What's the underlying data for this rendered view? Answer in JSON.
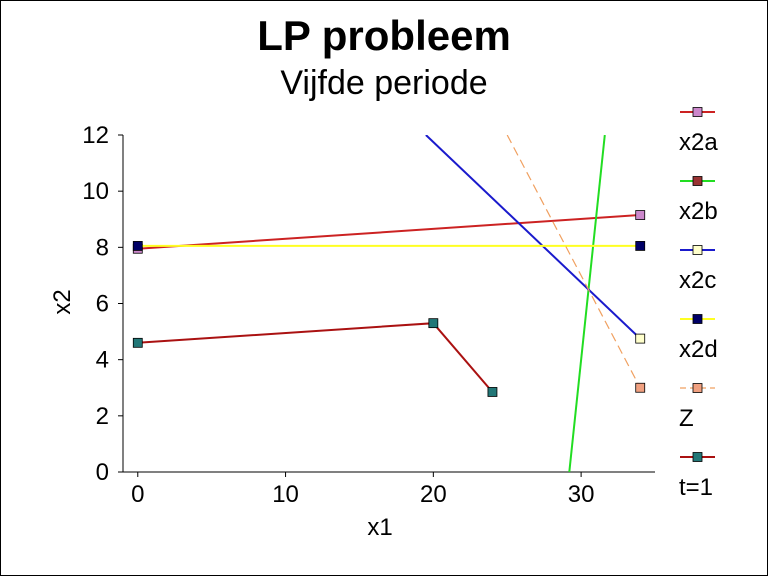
{
  "chart_data": {
    "type": "line",
    "title": "LP probleem",
    "subtitle": "Vijfde periode",
    "xlabel": "x1",
    "ylabel": "x2",
    "xlim": [
      -1,
      35
    ],
    "ylim": [
      0,
      12
    ],
    "xticks": [
      0,
      10,
      20,
      30
    ],
    "yticks": [
      0,
      2,
      4,
      6,
      8,
      10,
      12
    ],
    "grid": false,
    "legend_position": "right",
    "series": [
      {
        "name": "x2a",
        "color": "#cc2222",
        "marker_fill": "#cc88cc",
        "dashed": false,
        "x": [
          0,
          34
        ],
        "y": [
          7.95,
          9.15
        ],
        "marker_x": [
          0,
          34
        ],
        "marker_y": [
          7.95,
          9.15
        ]
      },
      {
        "name": "x2b",
        "color": "#22dd22",
        "marker_fill": "#993333",
        "dashed": false,
        "x": [
          29.2,
          31.6
        ],
        "y": [
          0,
          12
        ],
        "marker_x": [],
        "marker_y": []
      },
      {
        "name": "x2c",
        "color": "#1a1acc",
        "marker_fill": "#ffffcc",
        "dashed": false,
        "x": [
          19.5,
          34
        ],
        "y": [
          12,
          4.75
        ],
        "marker_x": [
          34
        ],
        "marker_y": [
          4.75
        ]
      },
      {
        "name": "x2d",
        "color": "#ffff22",
        "marker_fill": "#000066",
        "dashed": false,
        "x": [
          0,
          34
        ],
        "y": [
          8.05,
          8.05
        ],
        "marker_x": [
          0,
          34
        ],
        "marker_y": [
          8.05,
          8.05
        ]
      },
      {
        "name": "Z",
        "color": "#f0a060",
        "marker_fill": "#f0a080",
        "dashed": true,
        "x": [
          25,
          34
        ],
        "y": [
          12,
          3.0
        ],
        "marker_x": [
          34
        ],
        "marker_y": [
          3.0
        ]
      },
      {
        "name": "t=1",
        "color": "#aa1111",
        "marker_fill": "#227777",
        "dashed": false,
        "x": [
          0,
          20,
          24
        ],
        "y": [
          4.6,
          5.3,
          2.85
        ],
        "marker_x": [
          0,
          20,
          24
        ],
        "marker_y": [
          4.6,
          5.3,
          2.85
        ]
      }
    ]
  }
}
